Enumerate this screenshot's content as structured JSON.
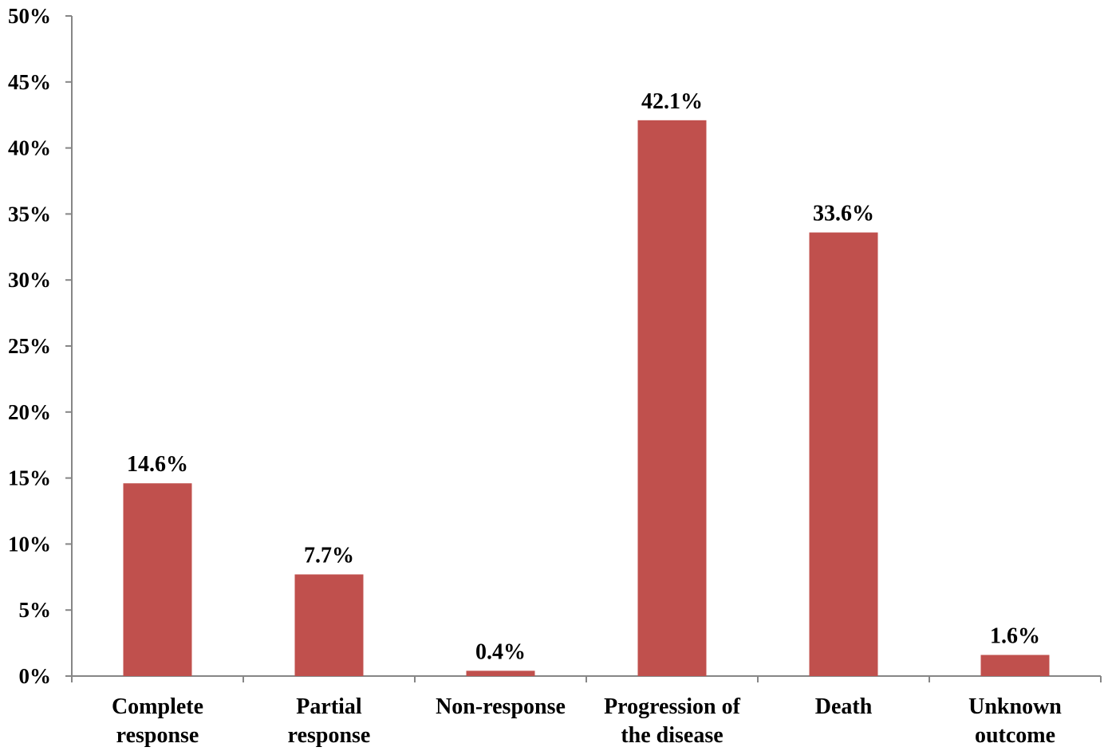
{
  "chart_data": {
    "type": "bar",
    "categories": [
      [
        "Complete",
        "response"
      ],
      [
        "Partial",
        "response"
      ],
      [
        "Non-response"
      ],
      [
        "Progression of",
        "the disease"
      ],
      [
        "Death"
      ],
      [
        "Unknown",
        "outcome"
      ]
    ],
    "values": [
      14.6,
      7.7,
      0.4,
      42.1,
      33.6,
      1.6
    ],
    "data_labels": [
      "14.6%",
      "7.7%",
      "0.4%",
      "42.1%",
      "33.6%",
      "1.6%"
    ],
    "ylim": [
      0,
      50
    ],
    "y_ticks": [
      0,
      5,
      10,
      15,
      20,
      25,
      30,
      35,
      40,
      45,
      50
    ],
    "y_tick_labels": [
      "0%",
      "5%",
      "10%",
      "15%",
      "20%",
      "25%",
      "30%",
      "35%",
      "40%",
      "45%",
      "50%"
    ],
    "title": "",
    "xlabel": "",
    "ylabel": "",
    "grid": false,
    "legend": "none",
    "colors": {
      "bar": "#C0504D",
      "axis": "#868686",
      "text": "#000000"
    }
  }
}
